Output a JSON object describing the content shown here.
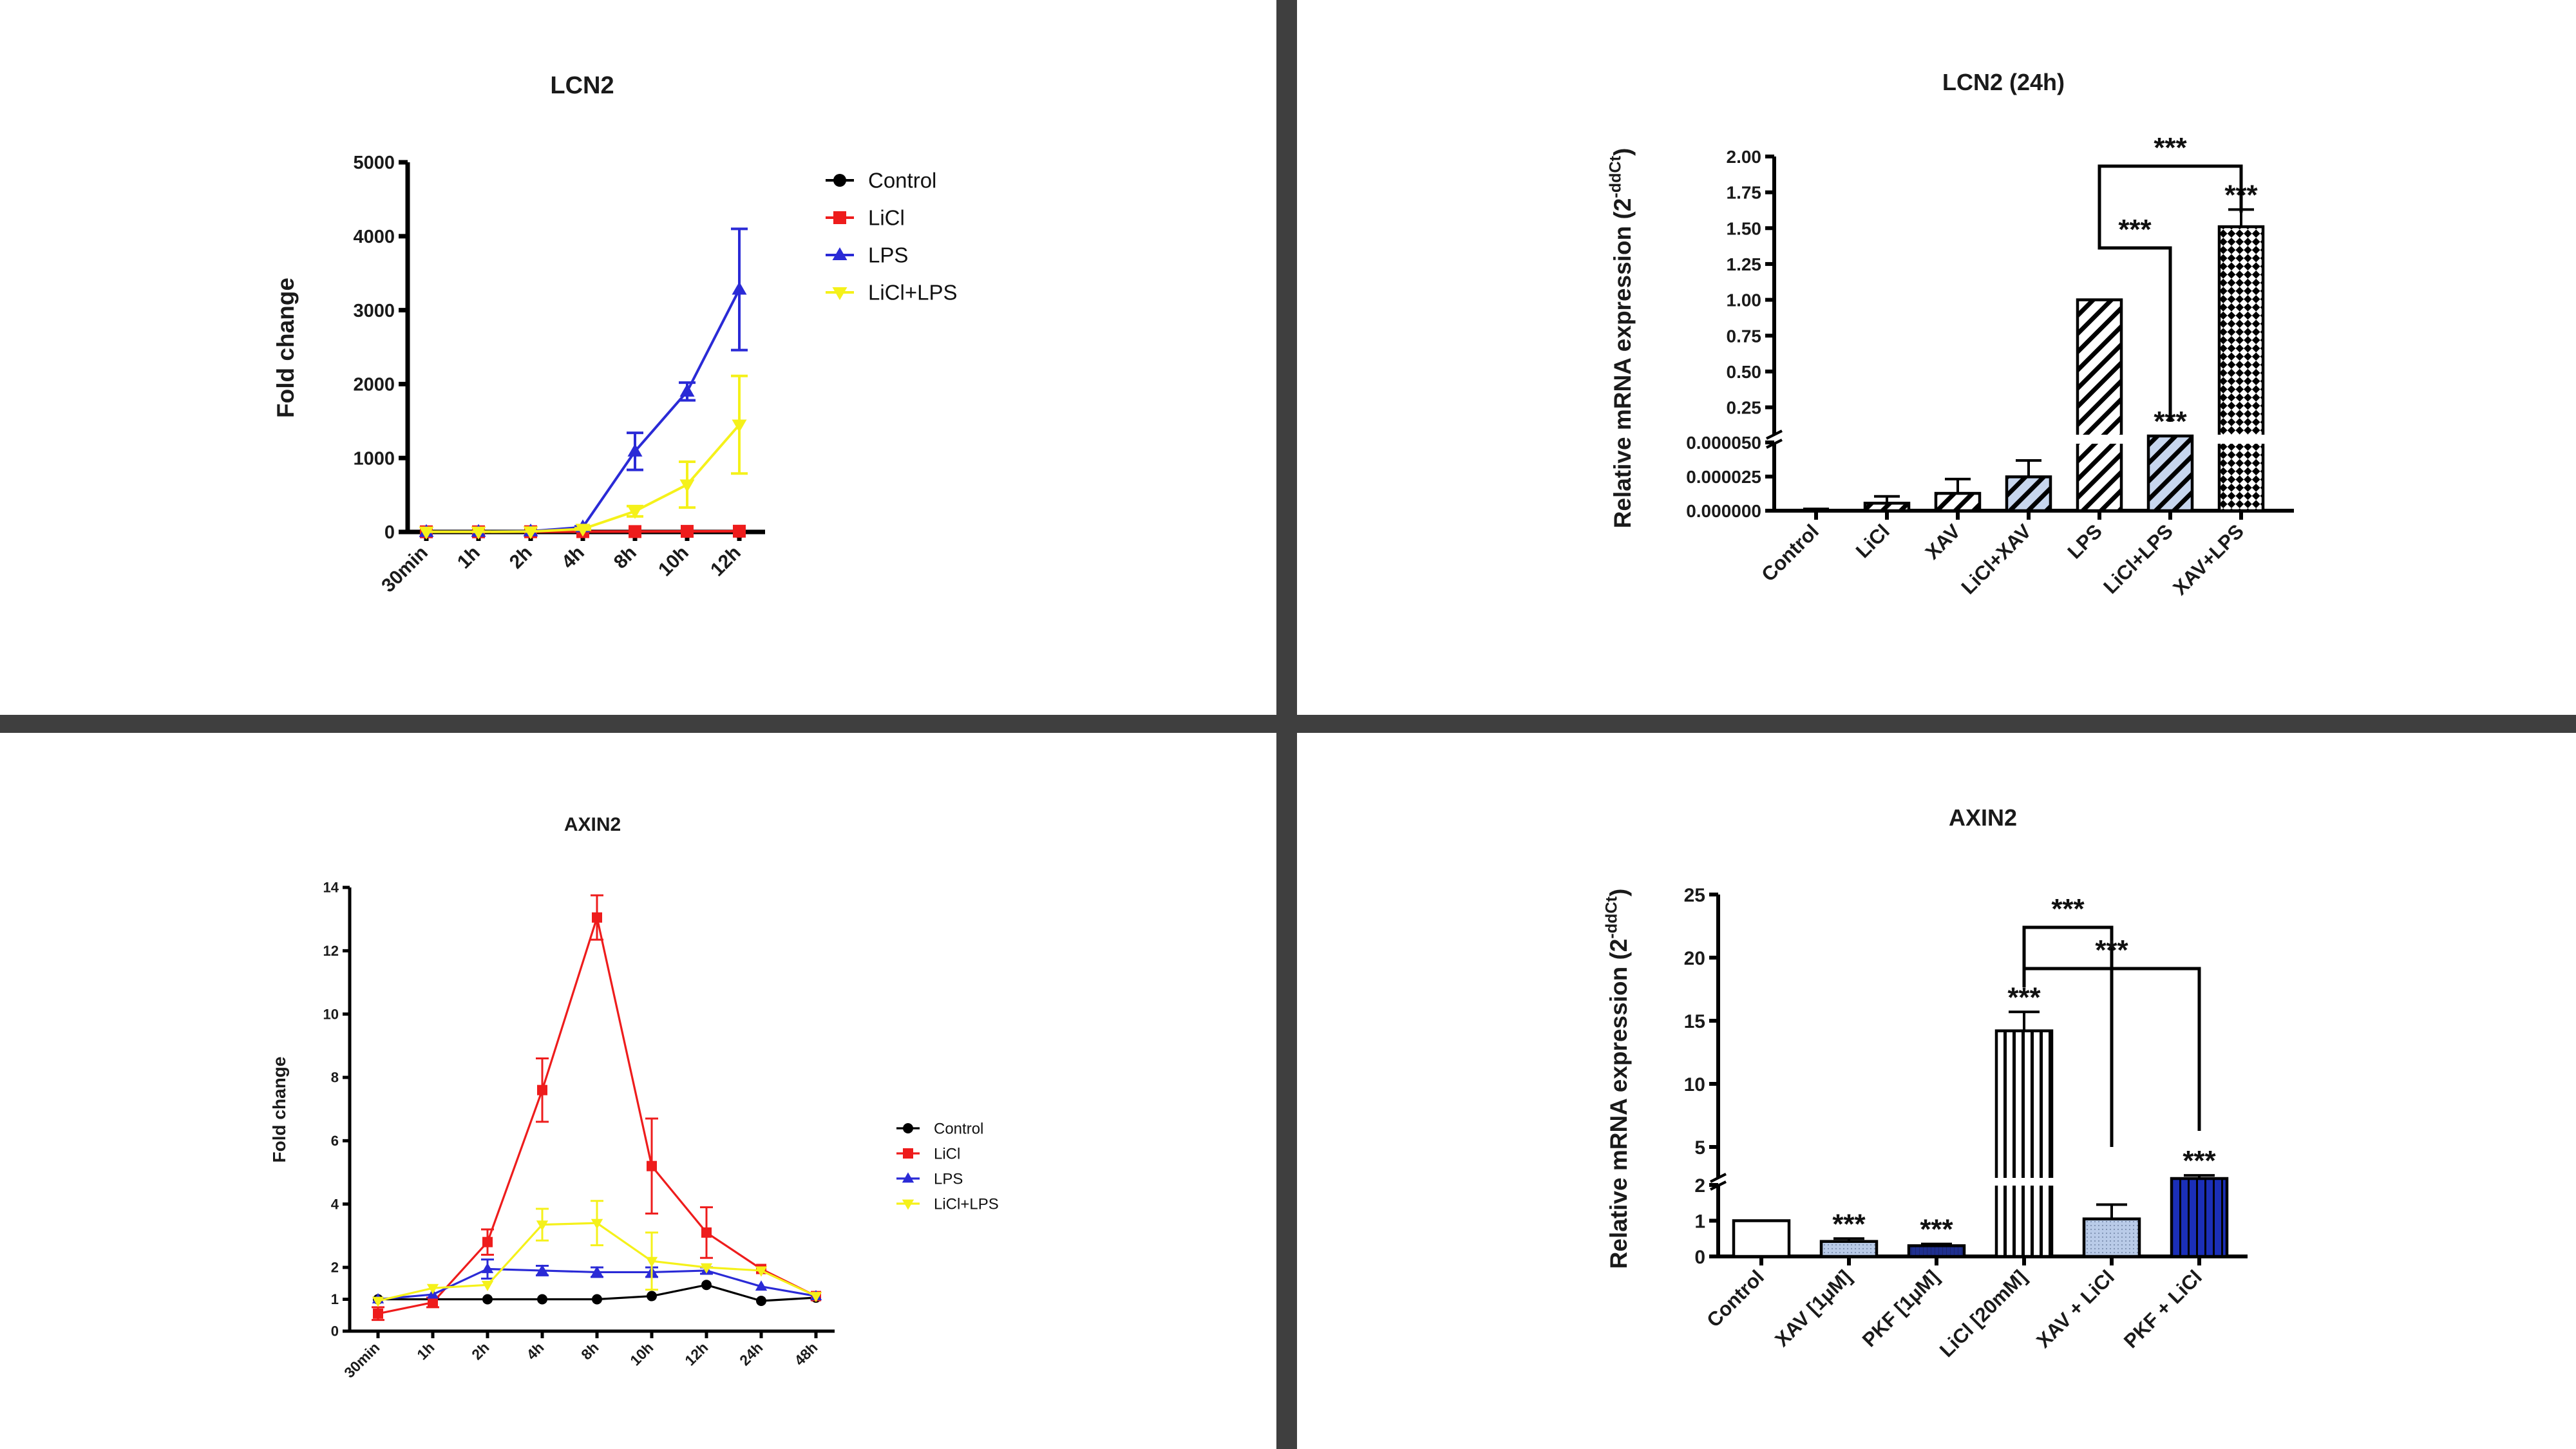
{
  "colors": {
    "control": "#000000",
    "licl": "#ee1c1c",
    "lps": "#2a2ad6",
    "licl_lps": "#f5f11a",
    "divider": "#3f3f3f"
  },
  "chart_data": [
    {
      "id": "p1",
      "type": "line",
      "title": "LCN2",
      "xlabel": "",
      "ylabel": "Fold change",
      "categories": [
        "30min",
        "1h",
        "2h",
        "4h",
        "8h",
        "10h",
        "12h"
      ],
      "y_ticks": [
        0,
        1000,
        2000,
        3000,
        4000,
        5000
      ],
      "ylim": [
        0,
        5000
      ],
      "legend": "right",
      "series": [
        {
          "name": "Control",
          "marker": "circle",
          "values": [
            1,
            1,
            1,
            1,
            1,
            1,
            1
          ],
          "errors": [
            0,
            0,
            0,
            0,
            0,
            0,
            0
          ]
        },
        {
          "name": "LiCl",
          "marker": "square",
          "values": [
            2,
            2,
            3,
            4,
            5,
            8,
            10
          ],
          "errors": [
            0,
            0,
            0,
            0,
            0,
            0,
            0
          ]
        },
        {
          "name": "LPS",
          "marker": "triangle-up",
          "values": [
            2,
            3,
            10,
            65,
            1090,
            1900,
            3280
          ],
          "errors": [
            0,
            0,
            0,
            10,
            250,
            120,
            820
          ]
        },
        {
          "name": "LiCl+LPS",
          "marker": "triangle-down",
          "values": [
            2,
            2,
            5,
            40,
            280,
            640,
            1450
          ],
          "errors": [
            0,
            0,
            0,
            10,
            70,
            310,
            660
          ]
        }
      ]
    },
    {
      "id": "p2",
      "type": "bar",
      "title": "LCN2 (24h)",
      "xlabel": "",
      "ylabel_main": "Relative mRNA expression (2",
      "ylabel_sup": "-ddCt",
      "ylabel_end": ")",
      "categories": [
        "Control",
        "LiCl",
        "XAV",
        "LiCl+XAV",
        "LPS",
        "LiCl+LPS",
        "XAV+LPS"
      ],
      "values": [
        1e-07,
        5.5e-06,
        1.27e-05,
        2.48e-05,
        1.0,
        0.05,
        1.51
      ],
      "errors": [
        1.2e-06,
        5e-06,
        1.05e-05,
        1.2e-05,
        0.0,
        0.0,
        0.12
      ],
      "patterns": [
        "none",
        "hatch",
        "hatch",
        "hatch-blue",
        "hatch",
        "hatch-blue",
        "checker"
      ],
      "y_ticks_lower": [
        "0.000000",
        "0.000025",
        "0.000050"
      ],
      "y_ticks_upper": [
        "0.25",
        "0.50",
        "0.75",
        "1.00",
        "1.25",
        "1.50",
        "1.75",
        "2.00"
      ],
      "segments": "0–0.00005 | 0.05–2.00",
      "bar_stars": [
        "",
        "",
        "",
        "",
        "",
        "***",
        "***"
      ],
      "brackets": [
        {
          "from": "LPS",
          "to": "XAV+LPS",
          "label": "***"
        },
        {
          "from": "LPS",
          "to": "LiCl+LPS",
          "label": "***"
        }
      ]
    },
    {
      "id": "p3",
      "type": "line",
      "title": "AXIN2",
      "xlabel": "",
      "ylabel": "Fold change",
      "categories": [
        "30min",
        "1h",
        "2h",
        "4h",
        "8h",
        "10h",
        "12h",
        "24h",
        "48h"
      ],
      "y_ticks": [
        0,
        1,
        2,
        4,
        6,
        8,
        10,
        12,
        14
      ],
      "ylim": [
        0,
        14
      ],
      "legend": "right",
      "series": [
        {
          "name": "Control",
          "marker": "circle",
          "values": [
            1.0,
            1.0,
            1.0,
            1.0,
            1.0,
            1.1,
            1.45,
            0.95,
            1.05
          ],
          "errors": [
            0,
            0,
            0,
            0,
            0,
            0,
            0,
            0,
            0
          ]
        },
        {
          "name": "LiCl",
          "marker": "square",
          "values": [
            0.55,
            0.9,
            2.8,
            7.6,
            13.05,
            5.2,
            3.1,
            1.95,
            1.1
          ],
          "errors": [
            0.2,
            0.15,
            0.4,
            1.0,
            0.7,
            1.5,
            0.8,
            0,
            0
          ]
        },
        {
          "name": "LPS",
          "marker": "triangle-up",
          "values": [
            1.0,
            1.15,
            1.95,
            1.9,
            1.85,
            1.85,
            1.9,
            1.4,
            1.1
          ],
          "errors": [
            0,
            0,
            0.3,
            0.15,
            0.15,
            0.15,
            0.1,
            0,
            0
          ]
        },
        {
          "name": "LiCl+LPS",
          "marker": "triangle-down",
          "values": [
            0.95,
            1.35,
            1.45,
            3.35,
            3.4,
            2.2,
            2.0,
            1.9,
            1.1
          ],
          "errors": [
            0,
            0,
            0,
            0.5,
            0.7,
            0.9,
            0,
            0,
            0
          ]
        }
      ]
    },
    {
      "id": "p4",
      "type": "bar",
      "title": "AXIN2",
      "xlabel": "",
      "ylabel_main": "Relative mRNA expression (2",
      "ylabel_sup": "-ddCt",
      "ylabel_end": ")",
      "categories": [
        "Control",
        "XAV [1μM]",
        "PKF [1μM]",
        "LiCl [20mM]",
        "XAV + LiCl",
        "PKF + LiCl"
      ],
      "values": [
        1.0,
        0.42,
        0.3,
        14.2,
        1.05,
        2.35
      ],
      "errors": [
        0,
        0.08,
        0.05,
        1.5,
        0.4,
        0.4
      ],
      "patterns": [
        "none",
        "dots-blue",
        "solid-navy",
        "vlines",
        "dots-blue",
        "vlines-blue"
      ],
      "y_ticks_lower": [
        "0",
        "1",
        "2"
      ],
      "y_ticks_upper": [
        "5",
        "10",
        "15",
        "20",
        "25"
      ],
      "segments": "0–2 | 2.5–25",
      "bar_stars": [
        "",
        "***",
        "***",
        "***",
        "",
        "***"
      ],
      "brackets": [
        {
          "from": "LiCl [20mM]",
          "to": "XAV + LiCl",
          "label": "***"
        },
        {
          "from": "LiCl [20mM]",
          "to": "PKF + LiCl",
          "label": "***"
        }
      ]
    }
  ]
}
